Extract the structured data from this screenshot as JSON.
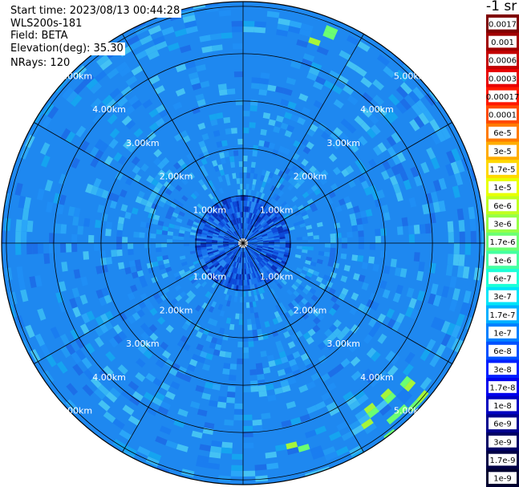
{
  "header": {
    "start_time": "Start time: 2023/08/13 00:44:28",
    "instrument": "WLS200s-181",
    "field": "Field: BETA",
    "elevation": "Elevation(deg): 35.30",
    "nrays": "NRays: 120"
  },
  "colorbar": {
    "units_label": "-1 sr",
    "labels": [
      "0.0017",
      "0.001",
      "0.0006",
      "0.0003",
      "0.00017",
      "0.0001",
      "6e-5",
      "3e-5",
      "1.7e-5",
      "1e-5",
      "6e-6",
      "3e-6",
      "1.7e-6",
      "1e-6",
      "6e-7",
      "3e-7",
      "1.7e-7",
      "1e-7",
      "6e-8",
      "3e-8",
      "1.7e-8",
      "1e-8",
      "6e-9",
      "3e-9",
      "1.7e-9",
      "1e-9"
    ],
    "colors": [
      "#7f0000",
      "#a00000",
      "#c40000",
      "#e80000",
      "#ff1800",
      "#ff4a00",
      "#ff7b00",
      "#ffac00",
      "#ffd800",
      "#e8ff00",
      "#c0ff20",
      "#96ff46",
      "#6bff72",
      "#44ffa0",
      "#1cffd8",
      "#00e4f8",
      "#00b0ff",
      "#0080ff",
      "#0050ff",
      "#0020ff",
      "#0000ed",
      "#0000c0",
      "#00008e",
      "#000065",
      "#000045",
      "#000030"
    ]
  },
  "chart_data": {
    "type": "heatmap",
    "projection": "polar (PPI scan)",
    "field": "BETA",
    "elevation_deg": 35.3,
    "nrays": 120,
    "range_ring_labels": [
      "1.00km",
      "2.00km",
      "3.00km",
      "4.00km",
      "5.00km"
    ],
    "range_rings_km": [
      1,
      2,
      3,
      4,
      5
    ],
    "max_range_km": 5.1,
    "colorbar_scale": "log",
    "value_range": [
      1e-09,
      0.0017
    ],
    "dominant_value_range": [
      1.7e-08,
      1.7e-07
    ],
    "enhanced_regions": [
      {
        "description": "near top edge",
        "azimuth_deg": 20,
        "value_approx": 6e-06
      },
      {
        "description": "lower-right edge arc",
        "azimuth_deg_range": [
          128,
          145
        ],
        "value_approx": 3e-06
      },
      {
        "description": "bottom edge",
        "azimuth_deg": 165,
        "value_approx": 1e-06
      }
    ],
    "grid": true,
    "legend_position": "right"
  }
}
